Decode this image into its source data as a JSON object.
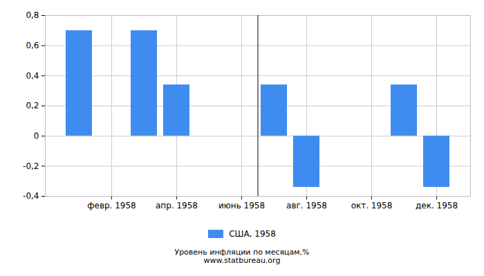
{
  "chart_data": {
    "type": "bar",
    "title": "Уровень инфляции по месяцам,%",
    "subtitle": "www.statbureau.org",
    "categories": [
      null,
      "февр. 1958",
      null,
      "апр. 1958",
      null,
      "июнь 1958",
      null,
      "авг. 1958",
      null,
      "окт. 1958",
      null,
      "дек. 1958"
    ],
    "series": [
      {
        "name": "США, 1958",
        "color": "#3f8cf0",
        "values": [
          0.7,
          0,
          0.7,
          0.34,
          0,
          0,
          0.34,
          -0.34,
          0,
          0,
          0.34,
          -0.34
        ]
      }
    ],
    "ylim": [
      -0.4,
      0.8
    ],
    "yticks": [
      {
        "value": -0.4,
        "label": "-0,4"
      },
      {
        "value": -0.2,
        "label": "-0,2"
      },
      0,
      {
        "value": 0.2,
        "label": "0,2"
      },
      {
        "value": 0.4,
        "label": "0,4"
      },
      {
        "value": 0.6,
        "label": "0,6"
      },
      {
        "value": 0.8,
        "label": "0,8"
      }
    ],
    "grid": true,
    "legend": "bottom"
  }
}
